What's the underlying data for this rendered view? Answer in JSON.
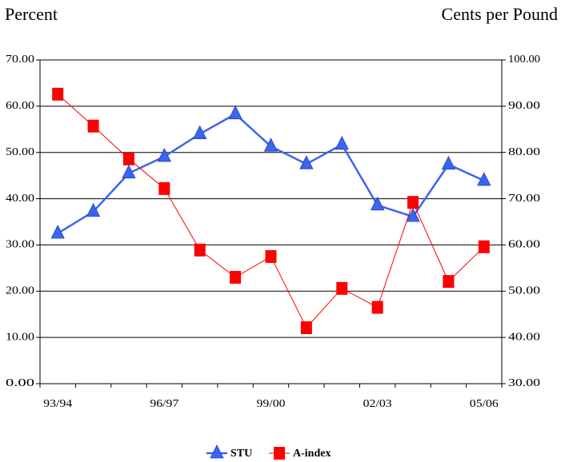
{
  "chart_data": {
    "type": "line",
    "y_label": "Percent",
    "y2_label": "Cents per Pound",
    "categories": [
      "93/94",
      null,
      null,
      "96/97",
      null,
      null,
      "99/00",
      null,
      null,
      "02/03",
      null,
      null,
      "05/06"
    ],
    "series": [
      {
        "name": "STU",
        "color": "#3b64f0",
        "marker": "triangle",
        "axis": "y",
        "values": [
          32.5,
          37.2,
          45.5,
          49.1,
          54.0,
          58.3,
          51.3,
          47.5,
          51.7,
          38.6,
          36.1,
          47.4,
          43.9
        ]
      },
      {
        "name": "A-index",
        "color": "#ff0000",
        "marker": "square",
        "axis": "y2",
        "values": [
          92.6,
          85.7,
          78.6,
          72.2,
          58.9,
          53.0,
          57.5,
          42.1,
          50.6,
          46.5,
          69.2,
          52.1,
          59.6
        ]
      }
    ],
    "ylim": [
      0,
      70
    ],
    "yticks": [
      {
        "value": 0,
        "label": "0.00"
      },
      {
        "value": 10,
        "label": "10.00"
      },
      {
        "value": 20,
        "label": "20.00"
      },
      {
        "value": 30,
        "label": "30.00"
      },
      {
        "value": 40,
        "label": "40.00"
      },
      {
        "value": 50,
        "label": "50.00"
      },
      {
        "value": 60,
        "label": "60.00"
      },
      {
        "value": 70,
        "label": "70.00"
      }
    ],
    "y2lim": [
      30,
      100
    ],
    "y2ticks": [
      {
        "value": 30,
        "label": "30.00"
      },
      {
        "value": 40,
        "label": "40.00"
      },
      {
        "value": 50,
        "label": "50.00"
      },
      {
        "value": 60,
        "label": "60.00"
      },
      {
        "value": 70,
        "label": "70.00"
      },
      {
        "value": 80,
        "label": "80.00"
      },
      {
        "value": 90,
        "label": "90.00"
      },
      {
        "value": 100,
        "label": "100.00"
      }
    ],
    "grid": true
  }
}
